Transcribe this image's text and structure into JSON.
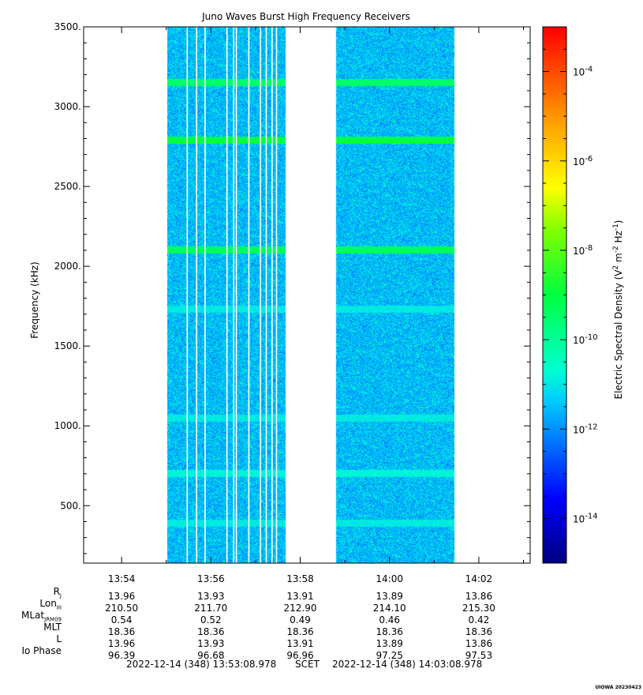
{
  "chart_data": {
    "type": "heatmap",
    "title": "Juno Waves Burst High Frequency Receivers",
    "ylabel": "Frequency (kHz)",
    "colorbar_label": "Electric Spectral Density (V² m⁻² Hz⁻¹)",
    "colorbar_label_main": "Electric Spectral Density (V",
    "colorbar_label_sup1": "2",
    "colorbar_label_mid": " m",
    "colorbar_label_sup2": "-2",
    "colorbar_label_mid2": " Hz",
    "colorbar_label_sup3": "-1",
    "colorbar_label_end": ")",
    "ylim": [
      140,
      3500
    ],
    "xlim_minutes": [
      0,
      10
    ],
    "scale": "log",
    "color_range_exponent": [
      -15,
      -3
    ],
    "y_ticks": [
      {
        "value": 3500,
        "label": "3500."
      },
      {
        "value": 3000,
        "label": "3000."
      },
      {
        "value": 2500,
        "label": "2500."
      },
      {
        "value": 2000,
        "label": "2000."
      },
      {
        "value": 1500,
        "label": "1500."
      },
      {
        "value": 1000,
        "label": "1000."
      },
      {
        "value": 500,
        "label": "500."
      }
    ],
    "x_ticks": [
      {
        "minute": 0.85,
        "label": "13:54"
      },
      {
        "minute": 2.85,
        "label": "13:56"
      },
      {
        "minute": 4.85,
        "label": "13:58"
      },
      {
        "minute": 6.85,
        "label": "14:00"
      },
      {
        "minute": 8.85,
        "label": "14:02"
      }
    ],
    "colorbar_ticks": [
      {
        "exp": -4,
        "label": "10",
        "sup": "-4"
      },
      {
        "exp": -6,
        "label": "10",
        "sup": "-6"
      },
      {
        "exp": -8,
        "label": "10",
        "sup": "-8"
      },
      {
        "exp": -10,
        "label": "10",
        "sup": "-10"
      },
      {
        "exp": -12,
        "label": "10",
        "sup": "-12"
      },
      {
        "exp": -14,
        "label": "10",
        "sup": "-14"
      }
    ],
    "data_segments": [
      {
        "start_minute": 1.88,
        "end_minute": 4.53
      },
      {
        "start_minute": 5.65,
        "end_minute": 8.3
      }
    ],
    "gap_lines_minutes": [
      2.32,
      2.53,
      2.72,
      3.21,
      3.36,
      3.42,
      3.7,
      3.96,
      4.09,
      4.22,
      4.32
    ],
    "background_exponent": -11.5,
    "emission_bands": [
      {
        "freq_khz": 3150,
        "exponent": -9.5
      },
      {
        "freq_khz": 2790,
        "exponent": -9
      },
      {
        "freq_khz": 2100,
        "exponent": -9.3
      },
      {
        "freq_khz": 1730,
        "exponent": -11
      },
      {
        "freq_khz": 1050,
        "exponent": -11
      },
      {
        "freq_khz": 700,
        "exponent": -10.8
      },
      {
        "freq_khz": 390,
        "exponent": -11
      }
    ]
  },
  "ephemeris": {
    "labels": [
      {
        "main": "R",
        "sub": "J"
      },
      {
        "main": "Lon",
        "sub": "III"
      },
      {
        "main": "MLat",
        "sub": "JRM09"
      },
      {
        "main": "MLT",
        "sub": ""
      },
      {
        "main": "L",
        "sub": ""
      },
      {
        "main": "Io Phase",
        "sub": ""
      }
    ],
    "columns": [
      {
        "minute": 0.85,
        "values": [
          "13.96",
          "210.50",
          "0.54",
          "18.36",
          "13.96",
          "96.39"
        ]
      },
      {
        "minute": 2.85,
        "values": [
          "13.93",
          "211.70",
          "0.52",
          "18.36",
          "13.93",
          "96.68"
        ]
      },
      {
        "minute": 4.85,
        "values": [
          "13.91",
          "212.90",
          "0.49",
          "18.36",
          "13.91",
          "96.96"
        ]
      },
      {
        "minute": 6.85,
        "values": [
          "13.89",
          "214.10",
          "0.46",
          "18.36",
          "13.89",
          "97.25"
        ]
      },
      {
        "minute": 8.85,
        "values": [
          "13.86",
          "215.30",
          "0.42",
          "18.36",
          "13.86",
          "97.53"
        ]
      }
    ]
  },
  "footer": {
    "start_time": "2022-12-14 (348) 13:53:08.978",
    "time_system": "SCET",
    "end_time": "2022-12-14 (348) 14:03:08.978"
  },
  "stamp": "UIOWA 20230423"
}
